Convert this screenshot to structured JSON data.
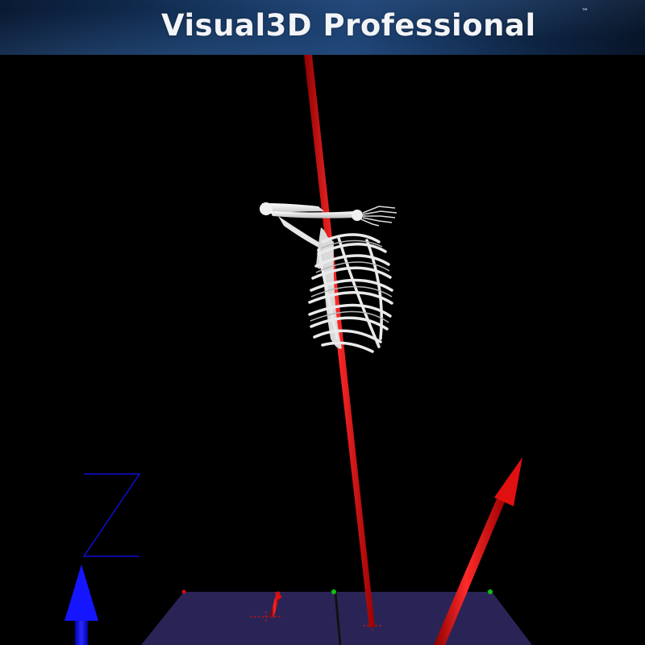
{
  "header": {
    "title": "Visual3D Professional",
    "trademark": "™"
  },
  "viewport": {
    "axis_label": "Z",
    "background": "#000000",
    "colors": {
      "force_vector": "#e01010",
      "axis_arrow": "#1010ff",
      "force_plate": "#2a2456",
      "bone": "#e8e8e8",
      "corner_marker_red": "#d01010",
      "corner_marker_green": "#10c010"
    }
  }
}
